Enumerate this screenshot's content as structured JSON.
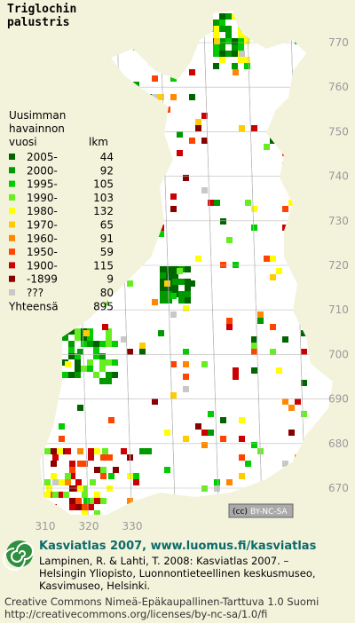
{
  "title": [
    "Triglochin",
    "palustris"
  ],
  "legend": {
    "heading": [
      "Uusimman",
      "havainnon",
      "vuosi"
    ],
    "count_heading": "lkm",
    "entries": [
      {
        "label": "2005-",
        "count": "44",
        "color": "#006400"
      },
      {
        "label": "2000-",
        "count": "92",
        "color": "#009a00"
      },
      {
        "label": "1995-",
        "count": "105",
        "color": "#00cc00"
      },
      {
        "label": "1990-",
        "count": "103",
        "color": "#66ee22"
      },
      {
        "label": "1980-",
        "count": "132",
        "color": "#ffff00"
      },
      {
        "label": "1970-",
        "count": "65",
        "color": "#ffcc00"
      },
      {
        "label": "1960-",
        "count": "91",
        "color": "#ff8800"
      },
      {
        "label": "1950-",
        "count": "59",
        "color": "#ff4400"
      },
      {
        "label": "1900-",
        "count": "115",
        "color": "#cc0000"
      },
      {
        "label": "-1899",
        "count": "9",
        "color": "#880000"
      },
      {
        "label": "???",
        "count": "80",
        "color": "#c8c8c8"
      }
    ],
    "total_label": "Yhteensä",
    "total": "895"
  },
  "map": {
    "northing_labels": [
      "770",
      "760",
      "750",
      "740",
      "730",
      "720",
      "710",
      "700",
      "690",
      "680",
      "670"
    ],
    "easting_labels": [
      "310",
      "320",
      "330"
    ],
    "license_badge": [
      "(cc)",
      "BY-NC-SA"
    ]
  },
  "footer": {
    "heading": "Kasviatlas 2007, www.luomus.fi/kasviatlas",
    "citation": [
      "Lampinen, R. & Lahti, T. 2008: Kasviatlas 2007. –",
      "Helsingin Yliopisto, Luonnontieteellinen keskusmuseo,",
      "Kasvimuseo, Helsinki."
    ],
    "license": [
      "Creative Commons Nimeä-Epäkaupallinen-Tarttuva 1.0 Suomi",
      "http://creativecommons.org/licenses/by-nc-sa/1.0/fi"
    ]
  }
}
